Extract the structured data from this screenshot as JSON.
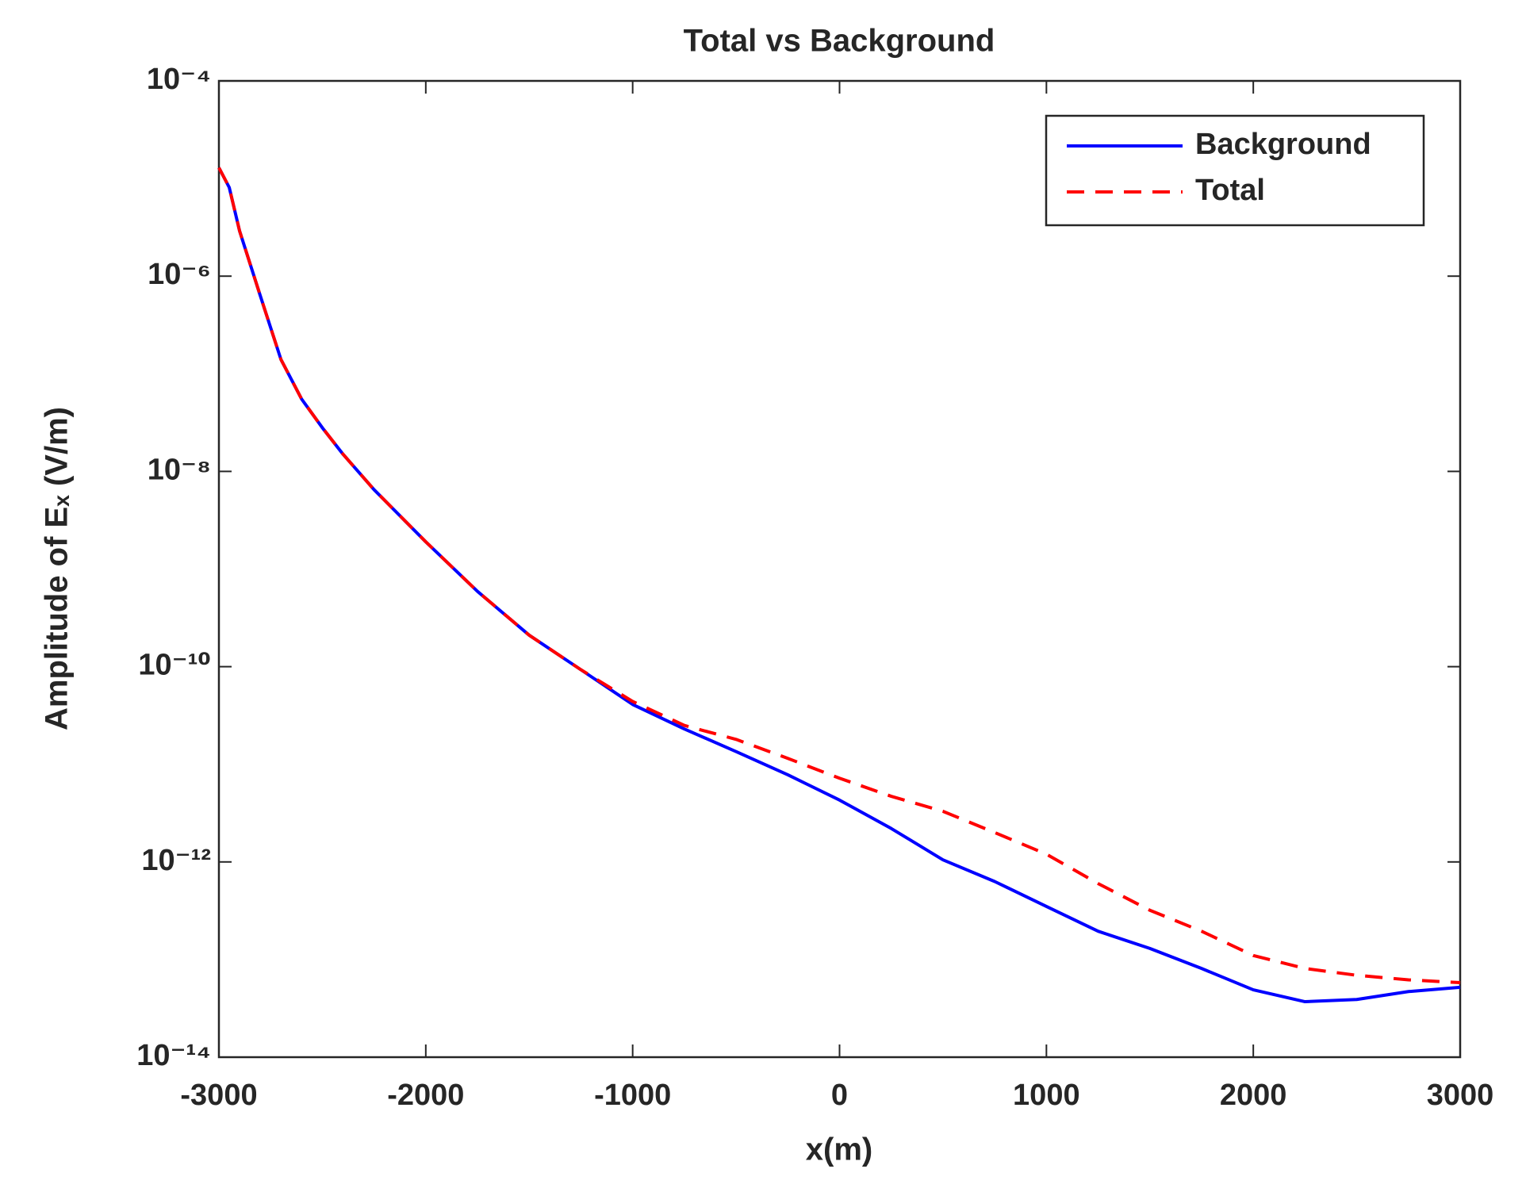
{
  "chart_data": {
    "type": "line",
    "title": "Total vs Background",
    "xlabel": "x(m)",
    "ylabel": "Amplitude of Eₓ (V/m)",
    "log_y": true,
    "grid": false,
    "legend_position": "upper right",
    "xlim": [
      -3000,
      3000
    ],
    "xticks": [
      -3000,
      -2000,
      -1000,
      0,
      1000,
      2000,
      3000
    ],
    "ylim": [
      1e-14,
      0.0001
    ],
    "yticks": [
      {
        "value": 1e-14,
        "label": "10⁻¹⁴"
      },
      {
        "value": 1e-12,
        "label": "10⁻¹²"
      },
      {
        "value": 1e-10,
        "label": "10⁻¹⁰"
      },
      {
        "value": 1e-08,
        "label": "10⁻⁸"
      },
      {
        "value": 1e-06,
        "label": "10⁻⁶"
      },
      {
        "value": 0.0001,
        "label": "10⁻⁴"
      }
    ],
    "x": [
      -3000,
      -2950,
      -2900,
      -2800,
      -2700,
      -2600,
      -2500,
      -2400,
      -2250,
      -2000,
      -1750,
      -1500,
      -1250,
      -1000,
      -750,
      -500,
      -250,
      0,
      250,
      500,
      750,
      1000,
      1250,
      1500,
      1750,
      2000,
      2250,
      2500,
      2750,
      3000
    ],
    "series": [
      {
        "name": "Background",
        "color": "#0000ff",
        "dash": "solid",
        "values": [
          1.29e-05,
          8.1e-06,
          2.9e-06,
          6.3e-07,
          1.4e-07,
          5.5e-08,
          2.8e-08,
          1.5e-08,
          6.5e-09,
          1.9e-09,
          5.9e-10,
          2.1e-10,
          9.3e-11,
          4.1e-11,
          2.3e-11,
          1.35e-11,
          7.8e-12,
          4.3e-12,
          2.2e-12,
          1.05e-12,
          6.3e-13,
          3.5e-13,
          1.95e-13,
          1.3e-13,
          8.1e-14,
          4.9e-14,
          3.7e-14,
          3.9e-14,
          4.7e-14,
          5.2e-14
        ]
      },
      {
        "name": "Total",
        "color": "#ff0000",
        "dash": "dashed",
        "values": [
          1.29e-05,
          8.1e-06,
          2.9e-06,
          6.3e-07,
          1.4e-07,
          5.5e-08,
          2.8e-08,
          1.5e-08,
          6.5e-09,
          1.9e-09,
          5.9e-10,
          2.1e-10,
          9.3e-11,
          4.4e-11,
          2.5e-11,
          1.8e-11,
          1.15e-11,
          7.2e-12,
          4.7e-12,
          3.3e-12,
          2e-12,
          1.2e-12,
          6e-13,
          3.2e-13,
          1.95e-13,
          1.1e-13,
          8.1e-14,
          6.9e-14,
          6.2e-14,
          5.8e-14
        ]
      }
    ]
  }
}
